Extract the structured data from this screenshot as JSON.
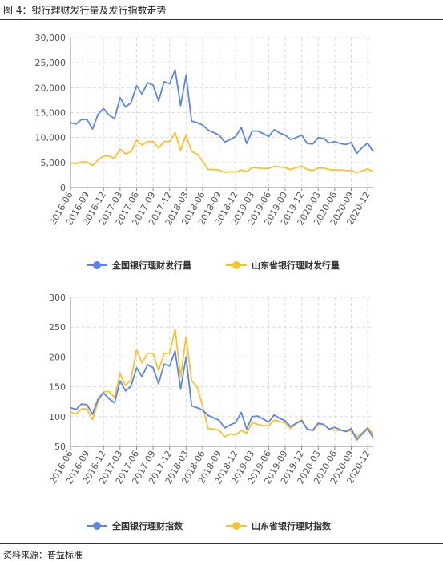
{
  "figure": {
    "title": "图 4：银行理财发行量及发行指数走势",
    "source": "资料来源：普益标准"
  },
  "colors": {
    "national": "#5b86e5",
    "shandong": "#f9c22e"
  },
  "chart_data": [
    {
      "type": "line",
      "title": "",
      "xlabel": "",
      "ylabel": "",
      "ylim": [
        0,
        30000
      ],
      "yticks": [
        "0",
        "5,000",
        "10,000",
        "15,000",
        "20,000",
        "25,000",
        "30,000"
      ],
      "ytick_values": [
        0,
        5000,
        10000,
        15000,
        20000,
        25000,
        30000
      ],
      "categories": [
        "2016-06",
        "2016-07",
        "2016-08",
        "2016-09",
        "2016-10",
        "2016-11",
        "2016-12",
        "2017-01",
        "2017-02",
        "2017-03",
        "2017-04",
        "2017-05",
        "2017-06",
        "2017-07",
        "2017-08",
        "2017-09",
        "2017-10",
        "2017-11",
        "2017-12",
        "2018-01",
        "2018-02",
        "2018-03",
        "2018-04",
        "2018-05",
        "2018-06",
        "2018-07",
        "2018-08",
        "2018-09",
        "2018-10",
        "2018-11",
        "2018-12",
        "2019-01",
        "2019-02",
        "2019-03",
        "2019-04",
        "2019-05",
        "2019-06",
        "2019-07",
        "2019-08",
        "2019-09",
        "2019-10",
        "2019-11",
        "2019-12",
        "2020-01",
        "2020-02",
        "2020-03",
        "2020-04",
        "2020-05",
        "2020-06",
        "2020-07",
        "2020-08",
        "2020-09",
        "2020-10",
        "2020-11",
        "2020-12",
        "2021-01"
      ],
      "tick_labels": [
        "2016-06",
        "2016-09",
        "2016-12",
        "2017-03",
        "2017-06",
        "2017-09",
        "2017-12",
        "2018-03",
        "2018-06",
        "2018-09",
        "2018-12",
        "2019-03",
        "2019-06",
        "2019-09",
        "2019-12",
        "2020-03",
        "2020-06",
        "2020-09",
        "2020-12"
      ],
      "grid": true,
      "legend_position": "bottom",
      "series": [
        {
          "name": "全国银行理财发行量",
          "color": "#5b86e5",
          "values": [
            13000,
            12700,
            13600,
            13600,
            11700,
            14700,
            15800,
            14500,
            13800,
            18000,
            16100,
            17000,
            20400,
            18700,
            21000,
            20500,
            17300,
            21200,
            20800,
            23600,
            16400,
            22500,
            13300,
            13000,
            12500,
            11500,
            11000,
            10500,
            9100,
            9600,
            10200,
            12000,
            8800,
            11300,
            11300,
            10800,
            10200,
            11600,
            10900,
            10500,
            9600,
            10000,
            10500,
            8800,
            8700,
            10000,
            9800,
            8900,
            9200,
            8800,
            8600,
            9000,
            6800,
            8000,
            8900,
            7100
          ]
        },
        {
          "name": "山东省银行理财发行量",
          "color": "#f9c22e",
          "values": [
            4900,
            4800,
            5100,
            5100,
            4400,
            5500,
            6300,
            6300,
            5800,
            7700,
            6700,
            7200,
            9500,
            8500,
            9200,
            9200,
            7900,
            9200,
            9200,
            11000,
            7400,
            10500,
            7200,
            6700,
            5300,
            3600,
            3600,
            3500,
            3000,
            3200,
            3100,
            3500,
            3200,
            4000,
            3900,
            3800,
            3800,
            4200,
            4100,
            4000,
            3600,
            4000,
            4300,
            3600,
            3400,
            3900,
            3900,
            3600,
            3500,
            3500,
            3400,
            3400,
            3000,
            3300,
            3700,
            3200
          ]
        }
      ]
    },
    {
      "type": "line",
      "title": "",
      "xlabel": "",
      "ylabel": "",
      "ylim": [
        50,
        300
      ],
      "yticks": [
        "50",
        "100",
        "150",
        "200",
        "250",
        "300"
      ],
      "ytick_values": [
        50,
        100,
        150,
        200,
        250,
        300
      ],
      "categories": [
        "2016-06",
        "2016-07",
        "2016-08",
        "2016-09",
        "2016-10",
        "2016-11",
        "2016-12",
        "2017-01",
        "2017-02",
        "2017-03",
        "2017-04",
        "2017-05",
        "2017-06",
        "2017-07",
        "2017-08",
        "2017-09",
        "2017-10",
        "2017-11",
        "2017-12",
        "2018-01",
        "2018-02",
        "2018-03",
        "2018-04",
        "2018-05",
        "2018-06",
        "2018-07",
        "2018-08",
        "2018-09",
        "2018-10",
        "2018-11",
        "2018-12",
        "2019-01",
        "2019-02",
        "2019-03",
        "2019-04",
        "2019-05",
        "2019-06",
        "2019-07",
        "2019-08",
        "2019-09",
        "2019-10",
        "2019-11",
        "2019-12",
        "2020-01",
        "2020-02",
        "2020-03",
        "2020-04",
        "2020-05",
        "2020-06",
        "2020-07",
        "2020-08",
        "2020-09",
        "2020-10",
        "2020-11",
        "2020-12",
        "2021-01"
      ],
      "tick_labels": [
        "2016-06",
        "2016-09",
        "2016-12",
        "2017-03",
        "2017-06",
        "2017-09",
        "2017-12",
        "2018-03",
        "2018-06",
        "2018-09",
        "2018-12",
        "2019-03",
        "2019-06",
        "2019-09",
        "2019-12",
        "2020-03",
        "2020-06",
        "2020-09",
        "2020-12"
      ],
      "grid": true,
      "legend_position": "bottom",
      "series": [
        {
          "name": "全国银行理财指数",
          "color": "#5b86e5",
          "values": [
            115,
            112,
            121,
            120,
            104,
            130,
            140,
            130,
            123,
            160,
            143,
            151,
            182,
            167,
            187,
            182,
            155,
            188,
            185,
            210,
            146,
            200,
            118,
            115,
            111,
            102,
            98,
            94,
            81,
            86,
            90,
            107,
            79,
            100,
            101,
            96,
            91,
            103,
            97,
            93,
            83,
            89,
            93,
            79,
            77,
            89,
            87,
            79,
            82,
            78,
            75,
            80,
            61,
            71,
            80,
            64
          ]
        },
        {
          "name": "山东省银行理财指数",
          "color": "#f9c22e",
          "values": [
            108,
            104,
            113,
            113,
            95,
            125,
            142,
            142,
            132,
            172,
            152,
            162,
            212,
            190,
            206,
            206,
            177,
            206,
            206,
            247,
            166,
            234,
            160,
            150,
            118,
            80,
            79,
            77,
            66,
            71,
            69,
            77,
            72,
            90,
            87,
            85,
            85,
            94,
            92,
            89,
            80,
            89,
            95,
            79,
            76,
            87,
            87,
            79,
            77,
            77,
            75,
            76,
            66,
            73,
            82,
            70
          ]
        }
      ]
    }
  ]
}
